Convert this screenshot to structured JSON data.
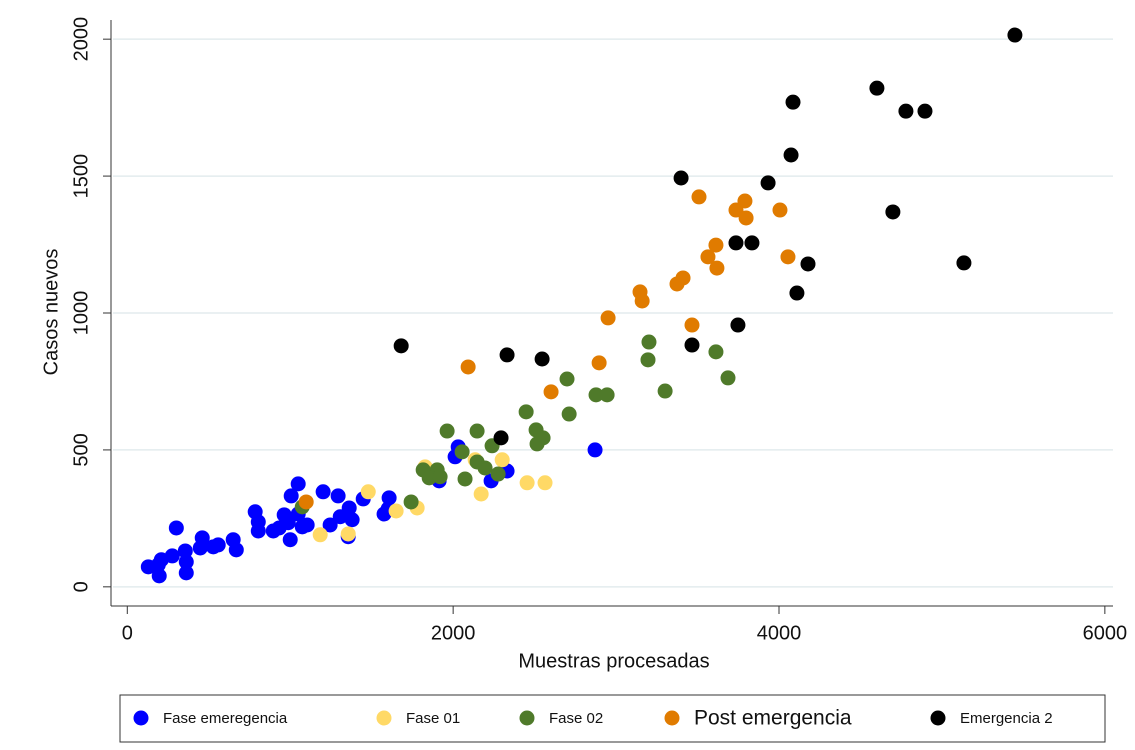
{
  "chart_data": {
    "type": "scatter",
    "x_label": "Muestras procesadas",
    "y_label": "Casos nuevos",
    "xlim": [
      -100,
      6050
    ],
    "ylim": [
      -70,
      2070
    ],
    "xticks": [
      0,
      2000,
      4000,
      6000
    ],
    "yticks": [
      0,
      500,
      1000,
      1500,
      2000
    ],
    "grid": true,
    "legend": "bottom",
    "series": [
      {
        "name": "Fase emeregencia",
        "color": "#0000ff",
        "x": [
          2031,
          2012,
          2871,
          2331,
          2233,
          1914,
          1049,
          1202,
          1294,
          1448,
          1607,
          1601,
          1576,
          1362,
          1307,
          1245,
          1380,
          1356,
          785,
          804,
          804,
          896,
          988,
          1006,
          963,
          1049,
          1074,
          932,
          1000,
          1104,
          650,
          669,
          301,
          460,
          448,
          528,
          558,
          356,
          276,
          362,
          209,
          129,
          190,
          362,
          196
        ],
        "y": [
          511,
          475,
          500,
          423,
          387,
          387,
          376,
          347,
          332,
          321,
          325,
          285,
          266,
          288,
          256,
          226,
          245,
          183,
          274,
          237,
          204,
          204,
          234,
          332,
          263,
          266,
          219,
          215,
          172,
          226,
          172,
          135,
          215,
          179,
          142,
          146,
          153,
          131,
          113,
          91,
          99,
          73,
          80,
          51,
          40
        ]
      },
      {
        "name": "Fase 01",
        "color": "#ffd966",
        "x": [
          2135,
          2301,
          1828,
          2454,
          2564,
          2172,
          1479,
          1779,
          1650,
          1184,
          1356
        ],
        "y": [
          464,
          464,
          438,
          380,
          380,
          339,
          347,
          288,
          277,
          190,
          193
        ]
      },
      {
        "name": "Fase 02",
        "color": "#4f7a2a",
        "x": [
          3202,
          3196,
          3613,
          2699,
          3687,
          3301,
          2877,
          2945,
          2448,
          2712,
          1963,
          2147,
          2509,
          2552,
          2515,
          2239,
          2055,
          2147,
          2196,
          1816,
          1902,
          2276,
          1853,
          1920,
          2073,
          1742,
          1074
        ],
        "y": [
          894,
          829,
          858,
          759,
          763,
          715,
          701,
          701,
          639,
          631,
          569,
          569,
          573,
          544,
          522,
          515,
          493,
          456,
          434,
          427,
          427,
          412,
          398,
          402,
          394,
          310,
          292
        ]
      },
      {
        "name": "Post emergencia",
        "color": "#e07b00",
        "x": [
          3509,
          3791,
          3736,
          3798,
          4006,
          3613,
          3564,
          3619,
          4055,
          3411,
          3374,
          3147,
          3160,
          2951,
          3466,
          2896,
          2092,
          2601,
          1098
        ],
        "y": [
          1424,
          1409,
          1376,
          1347,
          1376,
          1248,
          1205,
          1164,
          1205,
          1128,
          1106,
          1077,
          1044,
          982,
          956,
          818,
          803,
          712,
          310
        ]
      },
      {
        "name": "Emergencia 2",
        "color": "#000000",
        "x": [
          5448,
          4601,
          4779,
          4896,
          4086,
          4074,
          3399,
          3933,
          4699,
          3736,
          3834,
          4178,
          5135,
          4110,
          3748,
          3466,
          1681,
          2331,
          2546,
          2294
        ],
        "y": [
          2015,
          1821,
          1737,
          1737,
          1770,
          1577,
          1493,
          1475,
          1369,
          1256,
          1256,
          1179,
          1183,
          1073,
          956,
          883,
          880,
          847,
          832,
          544
        ]
      }
    ]
  }
}
